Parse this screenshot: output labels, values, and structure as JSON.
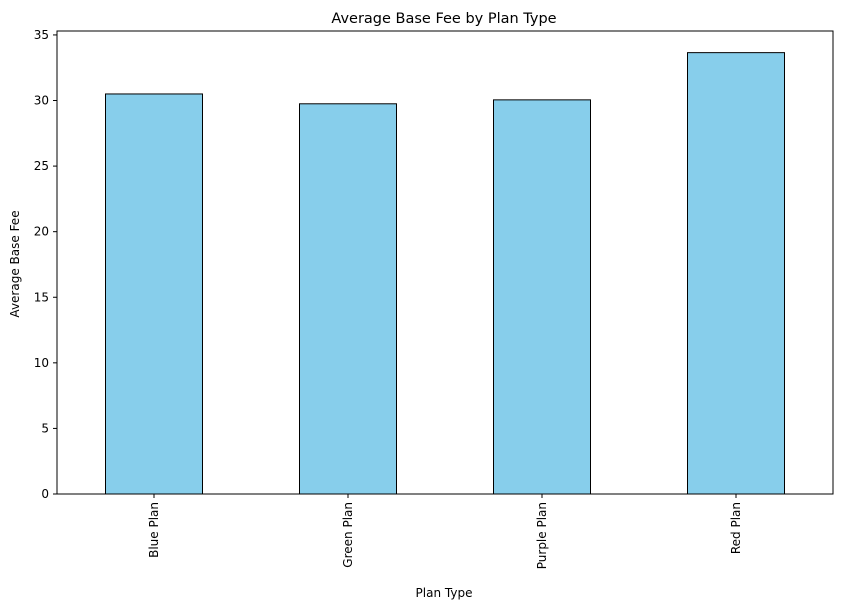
{
  "chart_data": {
    "type": "bar",
    "title": "Average Base Fee by Plan Type",
    "xlabel": "Plan Type",
    "ylabel": "Average Base Fee",
    "categories": [
      "Blue Plan",
      "Green Plan",
      "Purple Plan",
      "Red Plan"
    ],
    "values": [
      30.5,
      29.75,
      30.05,
      33.65
    ],
    "ylim": [
      0,
      35.3
    ],
    "yticks": [
      0,
      5,
      10,
      15,
      20,
      25,
      30,
      35
    ],
    "bar_color": "#87ceeb",
    "bar_edge_color": "#000000",
    "grid": false,
    "xtick_rotation": "vertical"
  }
}
